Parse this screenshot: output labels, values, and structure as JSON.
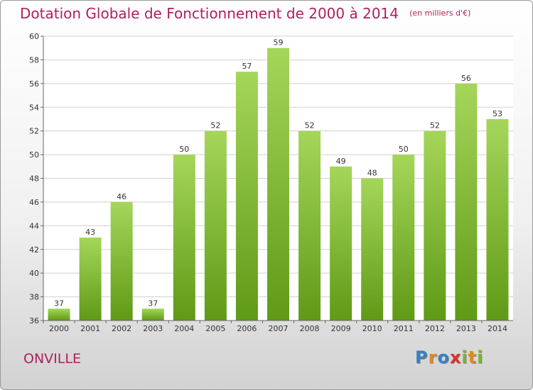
{
  "title": "Dotation Globale de Fonctionnement de 2000 à 2014",
  "unit": "(en milliers d'€)",
  "commune": "ONVILLE",
  "logo": {
    "letters": [
      {
        "char": "P",
        "color": "#3a7fc3"
      },
      {
        "char": "r",
        "color": "#e08a1f"
      },
      {
        "char": "o",
        "color": "#3a7fc3"
      },
      {
        "char": "x",
        "color": "#e0302b"
      },
      {
        "char": "i",
        "color": "#7bb32e"
      },
      {
        "char": "t",
        "color": "#e08a1f"
      },
      {
        "char": "i",
        "color": "#7bb32e"
      }
    ]
  },
  "colors": {
    "title": "#b0205c",
    "bar_top": "#a5d65a",
    "bar_bottom": "#5f9a16",
    "grid": "#d0d0d0"
  },
  "chart_data": {
    "type": "bar",
    "title": "Dotation Globale de Fonctionnement de 2000 à 2014",
    "subtitle": "(en milliers d'€)",
    "categories": [
      "2000",
      "2001",
      "2002",
      "2003",
      "2004",
      "2005",
      "2006",
      "2007",
      "2008",
      "2009",
      "2010",
      "2011",
      "2012",
      "2013",
      "2014"
    ],
    "values": [
      37,
      43,
      46,
      37,
      50,
      52,
      57,
      59,
      52,
      49,
      48,
      50,
      52,
      56,
      53
    ],
    "ylim": [
      36,
      60
    ],
    "yticks": [
      36,
      38,
      40,
      42,
      44,
      46,
      48,
      50,
      52,
      54,
      56,
      58,
      60
    ],
    "xlabel": "",
    "ylabel": "",
    "grid": true,
    "legend": "none"
  }
}
